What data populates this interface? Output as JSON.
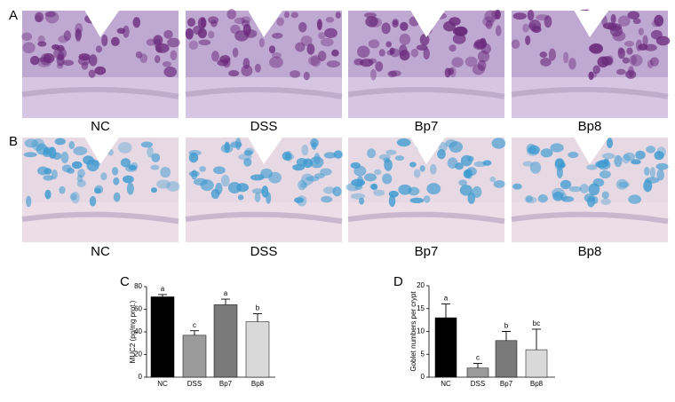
{
  "panels": {
    "A": {
      "letter": "A",
      "labels": [
        "NC",
        "DSS",
        "Bp7",
        "Bp8"
      ]
    },
    "B": {
      "letter": "B",
      "labels": [
        "NC",
        "DSS",
        "Bp7",
        "Bp8"
      ]
    }
  },
  "chart_data": [
    {
      "type": "bar",
      "panel_label": "C",
      "y_label": "MUC2 (pg/mg prot.)",
      "categories": [
        "NC",
        "DSS",
        "Bp7",
        "Bp8"
      ],
      "values": [
        71,
        37,
        64,
        49
      ],
      "errors": [
        2,
        4,
        5,
        7
      ],
      "letters": [
        "a",
        "c",
        "a",
        "b"
      ],
      "colors": [
        "#000000",
        "#9b9b9b",
        "#7a7a7a",
        "#d9d9d9"
      ],
      "ylim": [
        0,
        80
      ],
      "yticks": [
        0,
        20,
        40,
        60,
        80
      ]
    },
    {
      "type": "bar",
      "panel_label": "D",
      "y_label": "Goblet numbers per crypt",
      "categories": [
        "NC",
        "DSS",
        "Bp7",
        "Bp8"
      ],
      "values": [
        13,
        2,
        8,
        6
      ],
      "errors": [
        3,
        1,
        2,
        4.5
      ],
      "letters": [
        "a",
        "c",
        "b",
        "bc"
      ],
      "colors": [
        "#000000",
        "#9b9b9b",
        "#7a7a7a",
        "#d9d9d9"
      ],
      "ylim": [
        0,
        20
      ],
      "yticks": [
        0,
        5,
        10,
        15,
        20
      ]
    }
  ]
}
